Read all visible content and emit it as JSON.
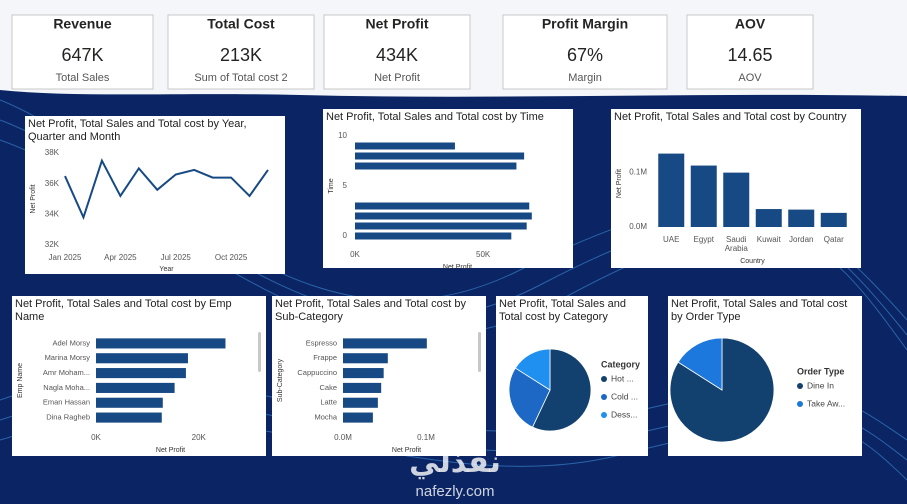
{
  "kpis": [
    {
      "title": "Revenue",
      "value": "647K",
      "subtitle": "Total Sales"
    },
    {
      "title": "Total Cost",
      "value": "213K",
      "subtitle": "Sum of Total cost 2"
    },
    {
      "title": "Net Profit",
      "value": "434K",
      "subtitle": "Net Profit"
    },
    {
      "title": "Profit Margin",
      "value": "67%",
      "subtitle": "Margin"
    },
    {
      "title": "AOV",
      "value": "14.65",
      "subtitle": "AOV"
    }
  ],
  "chart_data": [
    {
      "type": "line",
      "title": "Net Profit, Total Sales and Total cost by Year, Quarter and Month",
      "categories": [
        "Jan 2025",
        null,
        null,
        "Apr 2025",
        null,
        null,
        "Jul 2025",
        null,
        null,
        "Oct 2025",
        null,
        null
      ],
      "values": [
        36500,
        33800,
        37500,
        35200,
        37000,
        35600,
        36600,
        36900,
        36400,
        36400,
        35200,
        36900
      ],
      "color": "#174a84",
      "ylim": [
        31800,
        38200
      ],
      "yticks": [
        {
          "value": 32000,
          "label": "32K"
        },
        {
          "value": 34000,
          "label": "34K"
        },
        {
          "value": 36000,
          "label": "36K"
        },
        {
          "value": 38000,
          "label": "38K"
        }
      ],
      "x_label": "Year",
      "y_label": "Net Profit",
      "grid": false
    },
    {
      "type": "hbar",
      "title": "Net Profit, Total Sales and Total cost by Time",
      "y": [
        9,
        8,
        7,
        3,
        2,
        1,
        0
      ],
      "values": [
        39000,
        66000,
        63000,
        68000,
        69000,
        67000,
        61000
      ],
      "color": "#174a84",
      "xlim": [
        0,
        80000
      ],
      "xticks": [
        {
          "value": 0,
          "label": "0K"
        },
        {
          "value": 50000,
          "label": "50K"
        }
      ],
      "ylim": [
        -0.6,
        10.6
      ],
      "yticks": [
        0,
        5,
        10
      ],
      "x_label": "Net Profit",
      "y_label": "Time",
      "grid": false
    },
    {
      "type": "bar",
      "title": "Net Profit, Total Sales and Total cost by Country",
      "categories": [
        "UAE",
        "Egypt",
        "Saudi Arabia",
        "Kuwait",
        "Jordan",
        "Qatar"
      ],
      "values": [
        135000,
        113000,
        100000,
        33000,
        32000,
        26000
      ],
      "color": "#174a84",
      "ylim": [
        0,
        160000
      ],
      "yticks": [
        {
          "value": 0,
          "label": "0.0M"
        },
        {
          "value": 100000,
          "label": "0.1M"
        }
      ],
      "x_label": "Country",
      "y_label": "Net Profit",
      "grid": false
    },
    {
      "type": "hbar",
      "title": "Net Profit, Total Sales and Total cost by Emp Name",
      "categories": [
        "Adel Morsy",
        "Marina Morsy",
        "Amr Moham...",
        "Nagla Moha...",
        "Eman Hassan",
        "Dina Ragheb"
      ],
      "values": [
        25200,
        17900,
        17500,
        15300,
        13000,
        12800
      ],
      "color": "#174a84",
      "xlim": [
        0,
        29000
      ],
      "xticks": [
        {
          "value": 0,
          "label": "0K"
        },
        {
          "value": 20000,
          "label": "20K"
        }
      ],
      "x_label": "Net Profit",
      "y_label": "Emp Name",
      "grid": false
    },
    {
      "type": "hbar",
      "title": "Net Profit, Total Sales and Total cost by Sub-Category",
      "categories": [
        "Espresso",
        "Frappe",
        "Cappuccino",
        "Cake",
        "Latte",
        "Mocha"
      ],
      "values": [
        101000,
        54000,
        49000,
        46000,
        42000,
        36000
      ],
      "color": "#174a84",
      "xlim": [
        0,
        153000
      ],
      "xticks": [
        {
          "value": 0,
          "label": "0.0M"
        },
        {
          "value": 100000,
          "label": "0.1M"
        }
      ],
      "x_label": "Net Profit",
      "y_label": "Sub-Category",
      "grid": false
    },
    {
      "type": "pie",
      "title": "Net Profit, Total Sales and Total cost by Category",
      "legend_title": "Category",
      "categories": [
        "Hot ...",
        "Cold ...",
        "Dess..."
      ],
      "values": [
        57,
        27,
        16
      ],
      "colors": [
        "#12406f",
        "#1c68c4",
        "#1f8ff0"
      ]
    },
    {
      "type": "pie",
      "title": "Net Profit, Total Sales and Total cost by Order Type",
      "legend_title": "Order Type",
      "categories": [
        "Dine In",
        "Take Aw..."
      ],
      "values": [
        84,
        16
      ],
      "colors": [
        "#12406f",
        "#1c78dc"
      ]
    }
  ],
  "watermark": {
    "logo": "نفذلي",
    "site": "nafezly.com"
  }
}
